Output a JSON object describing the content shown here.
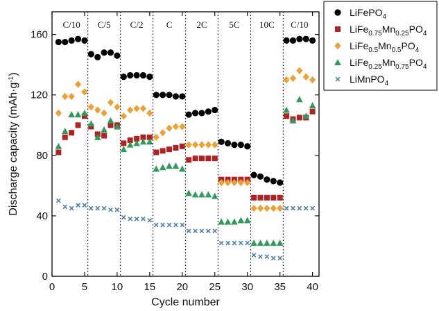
{
  "chart_data": {
    "type": "scatter",
    "xlabel": "Cycle number",
    "ylabel": "Discharge capacity (mAh·g",
    "ylabel_exp": "-1",
    "ylabel_close": ")",
    "xlim": [
      0,
      41
    ],
    "ylim": [
      0,
      175
    ],
    "xticks": [
      0,
      5,
      10,
      15,
      20,
      25,
      30,
      35,
      40
    ],
    "yticks": [
      0,
      40,
      80,
      120,
      160
    ],
    "grid": false,
    "legend_position": "right",
    "rate_boundaries": [
      5.5,
      10.5,
      15.5,
      20.5,
      25.5,
      30.5,
      35.5
    ],
    "rate_labels": [
      {
        "text": "C/10",
        "x": 3
      },
      {
        "text": "C/5",
        "x": 8
      },
      {
        "text": "C/2",
        "x": 13
      },
      {
        "text": "C",
        "x": 18
      },
      {
        "text": "2C",
        "x": 23
      },
      {
        "text": "5C",
        "x": 28
      },
      {
        "text": "10C",
        "x": 33
      },
      {
        "text": "C/10",
        "x": 38
      }
    ],
    "x": [
      1,
      2,
      3,
      4,
      5,
      6,
      7,
      8,
      9,
      10,
      11,
      12,
      13,
      14,
      15,
      16,
      17,
      18,
      19,
      20,
      21,
      22,
      23,
      24,
      25,
      26,
      27,
      28,
      29,
      30,
      31,
      32,
      33,
      34,
      35,
      36,
      37,
      38,
      39,
      40
    ],
    "series": [
      {
        "legend": [
          {
            "t": "LiFePO"
          },
          {
            "t": "4",
            "sub": true
          }
        ],
        "marker": "circle",
        "color": "#000000",
        "values": [
          155,
          155,
          156,
          157,
          156,
          147,
          145,
          148,
          148,
          146,
          132,
          133,
          133,
          133,
          132,
          120,
          120,
          120,
          119,
          119,
          107,
          108,
          108,
          109,
          110,
          89,
          88,
          87,
          87,
          86,
          67,
          66,
          64,
          63,
          62,
          156,
          156,
          157,
          157,
          156
        ]
      },
      {
        "legend": [
          {
            "t": "LiFe"
          },
          {
            "t": "0.75",
            "sub": true
          },
          {
            "t": "Mn"
          },
          {
            "t": "0.25",
            "sub": true
          },
          {
            "t": "PO"
          },
          {
            "t": "4",
            "sub": true
          }
        ],
        "marker": "square",
        "color": "#b22222",
        "values": [
          82,
          92,
          95,
          100,
          106,
          99,
          94,
          93,
          100,
          100,
          88,
          90,
          91,
          92,
          92,
          82,
          83,
          84,
          85,
          86,
          77,
          78,
          78,
          78,
          78,
          64,
          64,
          64,
          64,
          64,
          52,
          52,
          52,
          52,
          52,
          106,
          104,
          105,
          105,
          109
        ]
      },
      {
        "legend": [
          {
            "t": "LiFe"
          },
          {
            "t": "0.5",
            "sub": true
          },
          {
            "t": "Mn"
          },
          {
            "t": "0.5",
            "sub": true
          },
          {
            "t": "PO"
          },
          {
            "t": "4",
            "sub": true
          }
        ],
        "marker": "diamond",
        "color": "#f0a030",
        "values": [
          108,
          119,
          119,
          127,
          122,
          112,
          110,
          108,
          115,
          112,
          106,
          110,
          111,
          111,
          108,
          92,
          95,
          98,
          99,
          99,
          87,
          87,
          87,
          87,
          87,
          62,
          62,
          62,
          62,
          62,
          45,
          45,
          45,
          45,
          45,
          130,
          131,
          136,
          132,
          130
        ]
      },
      {
        "legend": [
          {
            "t": "LiFe"
          },
          {
            "t": "0.25",
            "sub": true
          },
          {
            "t": "Mn"
          },
          {
            "t": "0.75",
            "sub": true
          },
          {
            "t": "PO"
          },
          {
            "t": "4",
            "sub": true
          }
        ],
        "marker": "triangle",
        "color": "#2e9c5a",
        "values": [
          86,
          96,
          107,
          107,
          108,
          101,
          92,
          97,
          103,
          99,
          84,
          87,
          88,
          89,
          89,
          71,
          72,
          73,
          73,
          71,
          55,
          54,
          54,
          54,
          53,
          36,
          36,
          36,
          37,
          37,
          22,
          22,
          22,
          22,
          22,
          110,
          103,
          117,
          106,
          113
        ]
      },
      {
        "legend": [
          {
            "t": "LiMnPO"
          },
          {
            "t": "4",
            "sub": true
          }
        ],
        "marker": "x",
        "color": "#4a7fb5",
        "values": [
          50,
          46,
          45,
          47,
          47,
          45,
          45,
          45,
          44,
          44,
          39,
          38,
          38,
          38,
          37,
          34,
          34,
          34,
          34,
          34,
          30,
          30,
          30,
          30,
          30,
          22,
          22,
          22,
          22,
          22,
          14,
          13,
          13,
          12,
          12,
          45,
          45,
          45,
          45,
          45
        ]
      }
    ]
  }
}
